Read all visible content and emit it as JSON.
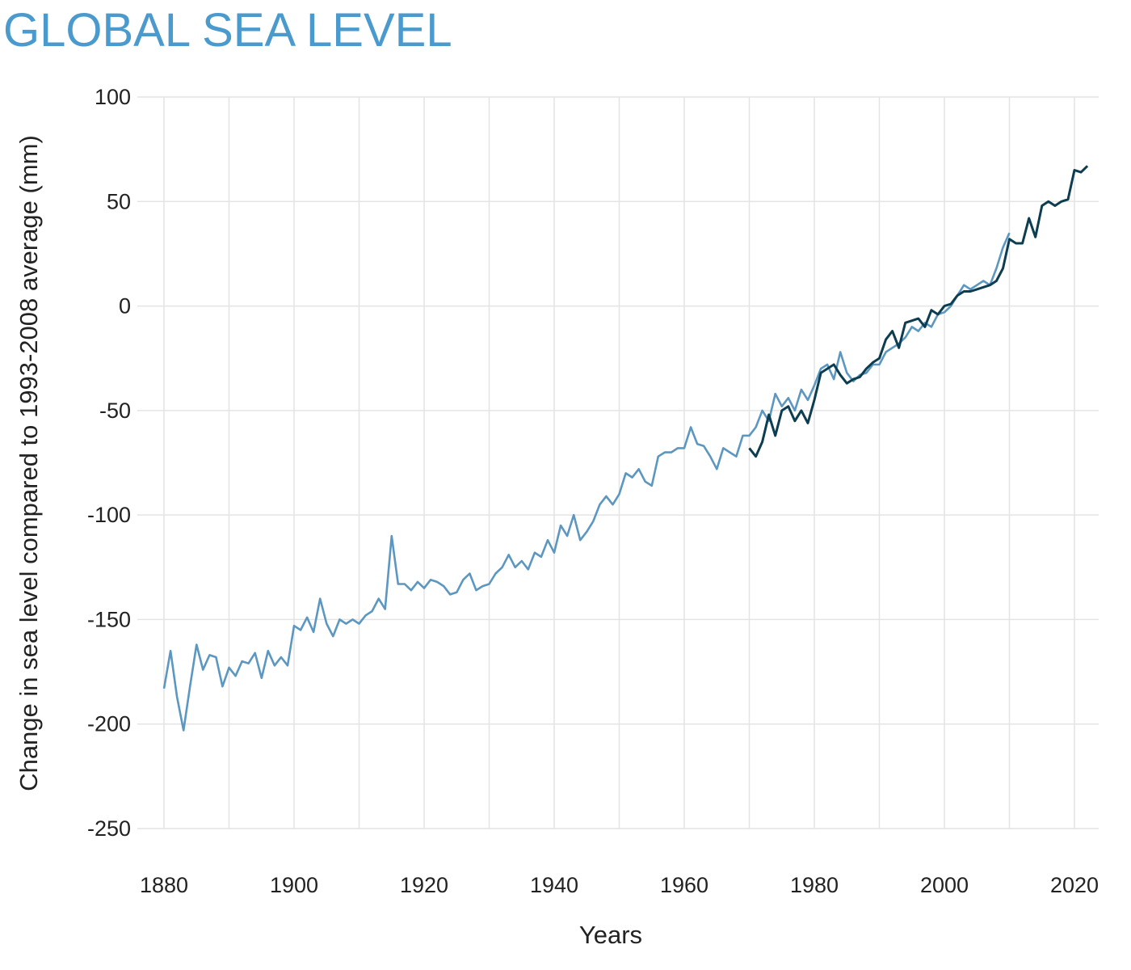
{
  "chart_data": {
    "type": "line",
    "title": "GLOBAL SEA LEVEL",
    "xlabel": "Years",
    "ylabel": "Change in sea level compared to 1993-2008 average (mm)",
    "xlim": [
      1880,
      2022
    ],
    "ylim": [
      -250,
      100
    ],
    "xticks": [
      1880,
      1900,
      1920,
      1940,
      1960,
      1980,
      2000,
      2020
    ],
    "yticks": [
      100,
      50,
      0,
      -50,
      -100,
      -150,
      -200,
      -250
    ],
    "grid": true,
    "colors": {
      "title": "#4a9acd",
      "series_light": "#5b97c0",
      "series_dark": "#0c3d50",
      "grid": "#e4e4e4"
    },
    "series": [
      {
        "color": "#5b97c0",
        "x": [
          1880,
          1881,
          1882,
          1883,
          1884,
          1885,
          1886,
          1887,
          1888,
          1889,
          1890,
          1891,
          1892,
          1893,
          1894,
          1895,
          1896,
          1897,
          1898,
          1899,
          1900,
          1901,
          1902,
          1903,
          1904,
          1905,
          1906,
          1907,
          1908,
          1909,
          1910,
          1911,
          1912,
          1913,
          1914,
          1915,
          1916,
          1917,
          1918,
          1919,
          1920,
          1921,
          1922,
          1923,
          1924,
          1925,
          1926,
          1927,
          1928,
          1929,
          1930,
          1931,
          1932,
          1933,
          1934,
          1935,
          1936,
          1937,
          1938,
          1939,
          1940,
          1941,
          1942,
          1943,
          1944,
          1945,
          1946,
          1947,
          1948,
          1949,
          1950,
          1951,
          1952,
          1953,
          1954,
          1955,
          1956,
          1957,
          1958,
          1959,
          1960,
          1961,
          1962,
          1963,
          1964,
          1965,
          1966,
          1967,
          1968,
          1969,
          1970,
          1971,
          1972,
          1973,
          1974,
          1975,
          1976,
          1977,
          1978,
          1979,
          1980,
          1981,
          1982,
          1983,
          1984,
          1985,
          1986,
          1987,
          1988,
          1989,
          1990,
          1991,
          1992,
          1993,
          1994,
          1995,
          1996,
          1997,
          1998,
          1999,
          2000,
          2001,
          2002,
          2003,
          2004,
          2005,
          2006,
          2007,
          2008,
          2009,
          2010
        ],
        "y": [
          -183,
          -165,
          -187,
          -203,
          -182,
          -162,
          -174,
          -167,
          -168,
          -182,
          -173,
          -177,
          -170,
          -171,
          -166,
          -178,
          -165,
          -172,
          -168,
          -172,
          -153,
          -155,
          -149,
          -156,
          -140,
          -152,
          -158,
          -150,
          -152,
          -150,
          -152,
          -148,
          -146,
          -140,
          -145,
          -110,
          -133,
          -133,
          -136,
          -132,
          -135,
          -131,
          -132,
          -134,
          -138,
          -137,
          -131,
          -128,
          -136,
          -134,
          -133,
          -128,
          -125,
          -119,
          -125,
          -122,
          -126,
          -118,
          -120,
          -112,
          -118,
          -105,
          -110,
          -100,
          -112,
          -108,
          -103,
          -95,
          -91,
          -95,
          -90,
          -80,
          -82,
          -78,
          -84,
          -86,
          -72,
          -70,
          -70,
          -68,
          -68,
          -58,
          -66,
          -67,
          -72,
          -78,
          -68,
          -70,
          -72,
          -62,
          -62,
          -58,
          -50,
          -55,
          -42,
          -48,
          -44,
          -50,
          -40,
          -45,
          -38,
          -30,
          -28,
          -35,
          -22,
          -32,
          -36,
          -33,
          -32,
          -28,
          -28,
          -22,
          -20,
          -18,
          -15,
          -10,
          -12,
          -8,
          -10,
          -4,
          -3,
          0,
          5,
          10,
          8,
          10,
          12,
          10,
          18,
          28,
          35
        ]
      },
      {
        "color": "#0c3d50",
        "x": [
          1970,
          1971,
          1972,
          1973,
          1974,
          1975,
          1976,
          1977,
          1978,
          1979,
          1980,
          1981,
          1982,
          1983,
          1984,
          1985,
          1986,
          1987,
          1988,
          1989,
          1990,
          1991,
          1992,
          1993,
          1994,
          1995,
          1996,
          1997,
          1998,
          1999,
          2000,
          2001,
          2002,
          2003,
          2004,
          2005,
          2006,
          2007,
          2008,
          2009,
          2010,
          2011,
          2012,
          2013,
          2014,
          2015,
          2016,
          2017,
          2018,
          2019,
          2020,
          2021,
          2022
        ],
        "y": [
          -68,
          -72,
          -65,
          -52,
          -62,
          -50,
          -48,
          -55,
          -50,
          -56,
          -45,
          -32,
          -30,
          -28,
          -33,
          -37,
          -35,
          -34,
          -30,
          -27,
          -25,
          -16,
          -12,
          -20,
          -8,
          -7,
          -6,
          -10,
          -2,
          -4,
          0,
          1,
          5,
          7,
          7,
          8,
          9,
          10,
          12,
          18,
          32,
          30,
          30,
          42,
          33,
          48,
          50,
          48,
          50,
          51,
          65,
          64,
          67
        ]
      }
    ]
  }
}
